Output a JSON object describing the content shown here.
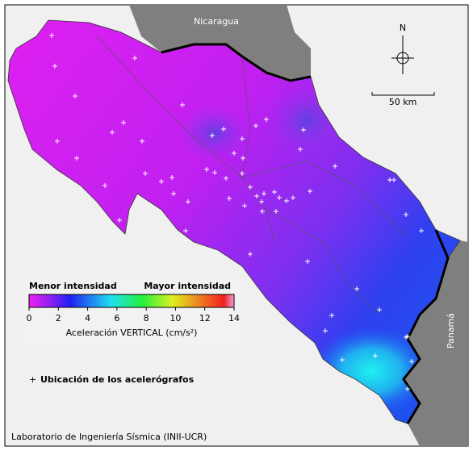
{
  "map": {
    "labels": {
      "north_country": "Nicaragua",
      "east_country": "Panamá",
      "north_arrow": "N",
      "scale_bar": "50 km"
    },
    "colorbar": {
      "low_label": "Menor intensidad",
      "high_label": "Mayor intensidad",
      "range": [
        0,
        14
      ],
      "ticks": [
        0,
        2,
        4,
        6,
        8,
        10,
        12,
        14
      ],
      "label": "Aceleración VERTICAL (cm/s²)"
    },
    "legend": {
      "stations": "Ubicación de los acelerógrafos"
    },
    "credit": "Laboratorio de Ingeniería Sísmica (INII-UCR)"
  }
}
